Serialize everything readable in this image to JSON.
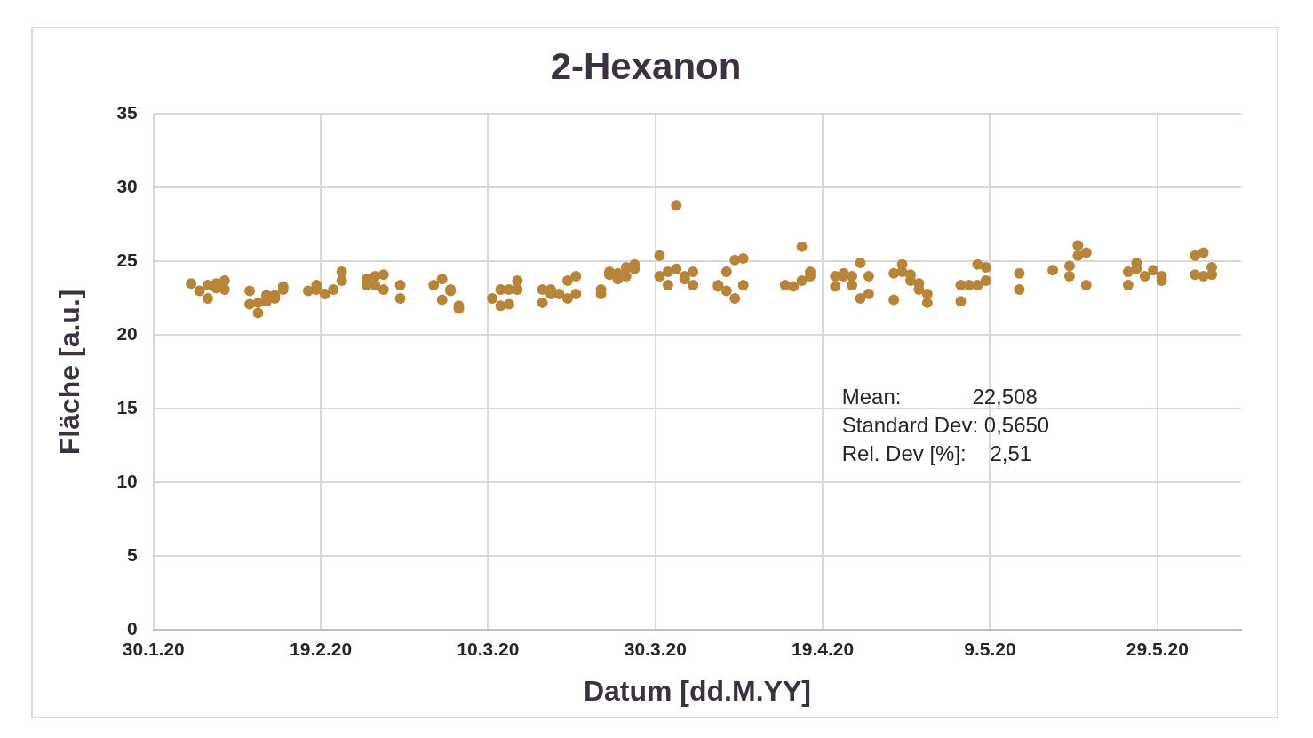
{
  "chart_data": {
    "type": "scatter",
    "title": "2-Hexanon",
    "xlabel": "Datum [dd.M.YY]",
    "ylabel": "Fläche [a.u.]",
    "x": [
      "2020-02-03T12:00",
      "2020-02-04T12:00",
      "2020-02-05T12:00",
      "2020-02-05T12:00",
      "2020-02-06T12:00",
      "2020-02-06T12:00",
      "2020-02-07T12:00",
      "2020-02-07T12:00",
      "2020-02-10T12:00",
      "2020-02-10T12:00",
      "2020-02-11T12:00",
      "2020-02-11T12:00",
      "2020-02-12T12:00",
      "2020-02-12T12:00",
      "2020-02-13T12:00",
      "2020-02-13T12:00",
      "2020-02-14T12:00",
      "2020-02-14T12:00",
      "2020-02-17T12:00",
      "2020-02-18T12:00",
      "2020-02-18T12:00",
      "2020-02-19T12:00",
      "2020-02-20T12:00",
      "2020-02-21T12:00",
      "2020-02-21T12:00",
      "2020-02-24T12:00",
      "2020-02-24T12:00",
      "2020-02-25T12:00",
      "2020-02-25T12:00",
      "2020-02-26T12:00",
      "2020-02-26T12:00",
      "2020-02-28T12:00",
      "2020-02-28T12:00",
      "2020-03-03T12:00",
      "2020-03-04T12:00",
      "2020-03-04T12:00",
      "2020-03-05T12:00",
      "2020-03-05T12:00",
      "2020-03-06T12:00",
      "2020-03-06T12:00",
      "2020-03-10T12:00",
      "2020-03-11T12:00",
      "2020-03-11T12:00",
      "2020-03-12T12:00",
      "2020-03-12T12:00",
      "2020-03-13T12:00",
      "2020-03-13T12:00",
      "2020-03-16T12:00",
      "2020-03-16T12:00",
      "2020-03-17T12:00",
      "2020-03-17T12:00",
      "2020-03-18T12:00",
      "2020-03-19T12:00",
      "2020-03-19T12:00",
      "2020-03-20T12:00",
      "2020-03-20T12:00",
      "2020-03-23T12:00",
      "2020-03-23T12:00",
      "2020-03-24T12:00",
      "2020-03-24T12:00",
      "2020-03-25T12:00",
      "2020-03-25T12:00",
      "2020-03-26T12:00",
      "2020-03-26T12:00",
      "2020-03-27T12:00",
      "2020-03-27T12:00",
      "2020-03-30T12:00",
      "2020-03-30T12:00",
      "2020-03-31T12:00",
      "2020-03-31T12:00",
      "2020-04-01T12:00",
      "2020-04-01T12:00",
      "2020-04-02T12:00",
      "2020-04-02T12:00",
      "2020-04-03T12:00",
      "2020-04-03T12:00",
      "2020-04-06T12:00",
      "2020-04-06T12:00",
      "2020-04-07T12:00",
      "2020-04-07T12:00",
      "2020-04-08T12:00",
      "2020-04-08T12:00",
      "2020-04-09T12:00",
      "2020-04-09T12:00",
      "2020-04-14T12:00",
      "2020-04-15T12:00",
      "2020-04-16T12:00",
      "2020-04-16T12:00",
      "2020-04-17T12:00",
      "2020-04-17T12:00",
      "2020-04-20T12:00",
      "2020-04-20T12:00",
      "2020-04-21T12:00",
      "2020-04-21T12:00",
      "2020-04-22T12:00",
      "2020-04-22T12:00",
      "2020-04-23T12:00",
      "2020-04-23T12:00",
      "2020-04-24T12:00",
      "2020-04-24T12:00",
      "2020-04-27T12:00",
      "2020-04-27T12:00",
      "2020-04-28T12:00",
      "2020-04-28T12:00",
      "2020-04-29T12:00",
      "2020-04-29T12:00",
      "2020-04-30T12:00",
      "2020-04-30T12:00",
      "2020-05-01T12:00",
      "2020-05-01T12:00",
      "2020-05-05T12:00",
      "2020-05-05T12:00",
      "2020-05-06T12:00",
      "2020-05-07T12:00",
      "2020-05-07T12:00",
      "2020-05-08T12:00",
      "2020-05-08T12:00",
      "2020-05-12T12:00",
      "2020-05-12T12:00",
      "2020-05-16T12:00",
      "2020-05-18T12:00",
      "2020-05-18T12:00",
      "2020-05-19T12:00",
      "2020-05-19T12:00",
      "2020-05-20T12:00",
      "2020-05-20T12:00",
      "2020-05-25T12:00",
      "2020-05-25T12:00",
      "2020-05-26T12:00",
      "2020-05-26T12:00",
      "2020-05-27T12:00",
      "2020-05-28T12:00",
      "2020-05-29T12:00",
      "2020-05-29T12:00",
      "2020-06-02T12:00",
      "2020-06-02T12:00",
      "2020-06-03T12:00",
      "2020-06-03T12:00",
      "2020-06-04T12:00",
      "2020-06-04T12:00"
    ],
    "values": [
      23.5,
      23.0,
      23.4,
      22.5,
      23.5,
      23.2,
      23.7,
      23.1,
      23.0,
      22.1,
      21.5,
      22.2,
      22.7,
      22.3,
      22.5,
      22.7,
      23.3,
      23.1,
      23.0,
      23.4,
      23.1,
      22.8,
      23.1,
      24.3,
      23.7,
      23.8,
      23.4,
      24.0,
      23.4,
      24.1,
      23.1,
      23.4,
      22.5,
      23.4,
      23.8,
      22.4,
      23.1,
      23.0,
      22.0,
      21.8,
      22.5,
      23.1,
      22.0,
      23.1,
      22.1,
      23.7,
      23.1,
      23.1,
      22.2,
      23.1,
      22.8,
      22.8,
      22.5,
      23.7,
      24.0,
      22.8,
      23.1,
      22.8,
      24.3,
      24.1,
      23.8,
      24.2,
      24.6,
      24.0,
      24.8,
      24.5,
      25.4,
      24.0,
      24.3,
      23.4,
      24.5,
      28.8,
      24.0,
      23.8,
      24.3,
      23.4,
      23.4,
      23.3,
      24.3,
      23.0,
      22.5,
      25.1,
      25.2,
      23.4,
      23.4,
      23.3,
      23.7,
      26.0,
      24.3,
      24.0,
      24.0,
      23.3,
      24.2,
      24.0,
      24.0,
      23.4,
      24.9,
      22.5,
      24.0,
      22.8,
      24.2,
      22.4,
      24.8,
      24.3,
      24.1,
      23.7,
      23.5,
      23.1,
      22.8,
      22.2,
      22.3,
      23.4,
      23.4,
      23.4,
      24.8,
      24.6,
      23.7,
      24.2,
      23.1,
      24.4,
      24.7,
      24.0,
      26.1,
      25.4,
      25.6,
      23.4,
      23.4,
      24.3,
      24.9,
      24.5,
      24.0,
      24.4,
      24.0,
      23.7,
      25.4,
      24.1,
      25.6,
      24.0,
      24.6,
      24.1
    ],
    "color": "#b8843a",
    "xlim": [
      "2020-01-30",
      "2020-06-08"
    ],
    "xticks": [
      {
        "value": "2020-01-30",
        "label": "30.1.20"
      },
      {
        "value": "2020-02-19",
        "label": "19.2.20"
      },
      {
        "value": "2020-03-10",
        "label": "10.3.20"
      },
      {
        "value": "2020-03-30",
        "label": "30.3.20"
      },
      {
        "value": "2020-04-19",
        "label": "19.4.20"
      },
      {
        "value": "2020-05-09",
        "label": "9.5.20"
      },
      {
        "value": "2020-05-29",
        "label": "29.5.20"
      }
    ],
    "ylim": [
      0,
      35
    ],
    "yticks": [
      0,
      5,
      10,
      15,
      20,
      25,
      30,
      35
    ],
    "grid": true,
    "marker": "circle",
    "annotations": [
      "Mean:            22,508",
      "Standard Dev: 0,5650",
      "Rel. Dev [%]:    2,51"
    ]
  }
}
